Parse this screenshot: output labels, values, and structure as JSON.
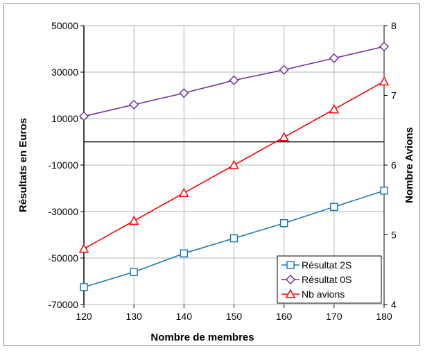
{
  "chart_data": {
    "type": "line",
    "categories": [
      120,
      130,
      140,
      150,
      160,
      170,
      180
    ],
    "xlabel": "Nombre de membres",
    "ylabel": "Résultats en Euros",
    "y2label": "Nombre Avions",
    "ylim": [
      -70000,
      50000
    ],
    "y2lim": [
      4,
      8
    ],
    "yticks": [
      50000,
      30000,
      10000,
      -10000,
      -30000,
      -50000,
      -70000
    ],
    "y2ticks": [
      8,
      7,
      6,
      5,
      4
    ],
    "grid": true,
    "legend_position": "bottom-right",
    "series": [
      {
        "name": "Résultat 2S",
        "axis": "left",
        "marker": "square",
        "color": "#1f77b4",
        "values": [
          -62500,
          -56000,
          -48000,
          -41500,
          -35000,
          -28000,
          -21000
        ]
      },
      {
        "name": "Résultat 0S",
        "axis": "left",
        "marker": "diamond",
        "color": "#7030a0",
        "values": [
          11000,
          16000,
          21000,
          26500,
          31000,
          36000,
          41000
        ]
      },
      {
        "name": "Nb avions",
        "axis": "right",
        "marker": "triangle",
        "color": "#ff0000",
        "values": [
          4.8,
          5.2,
          5.6,
          6.0,
          6.4,
          6.8,
          7.2
        ]
      }
    ]
  },
  "colors": {
    "gridline": "#b3b3b3",
    "zero_line": "#000000",
    "right_axis_title": "#ff0000"
  }
}
